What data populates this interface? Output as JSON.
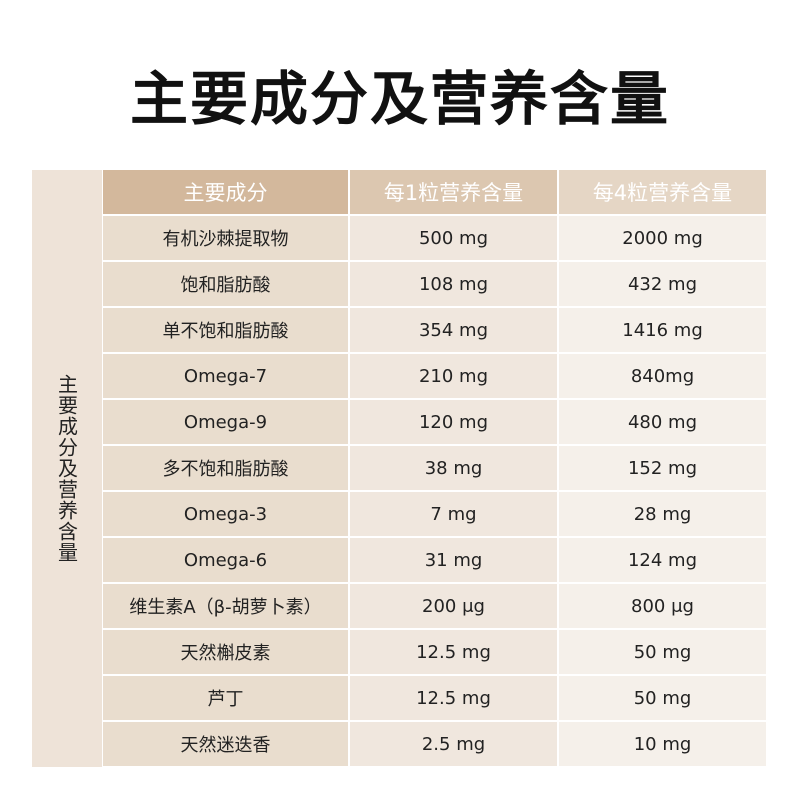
{
  "title": "主要成分及营养含量",
  "side_label": "主要成分及营养含量",
  "headers": [
    "主要成分",
    "每1粒营养含量",
    "每4粒营养含量"
  ],
  "rows": [
    [
      "有机沙棘提取物",
      "500 mg",
      "2000 mg"
    ],
    [
      "饱和脂肪酸",
      "108 mg",
      "432 mg"
    ],
    [
      "单不饱和脂肪酸",
      "354 mg",
      "1416 mg"
    ],
    [
      "Omega-7",
      "210 mg",
      "840mg"
    ],
    [
      "Omega-9",
      "120 mg",
      "480 mg"
    ],
    [
      "多不饱和脂肪酸",
      "38 mg",
      "152 mg"
    ],
    [
      "Omega-3",
      "7 mg",
      "28 mg"
    ],
    [
      "Omega-6",
      "31 mg",
      "124 mg"
    ],
    [
      "维生素A（β-胡萝卜素）",
      "200 μg",
      "800 μg"
    ],
    [
      "天然槲皮素",
      "12.5 mg",
      "50 mg"
    ],
    [
      "芦丁",
      "12.5 mg",
      "50 mg"
    ],
    [
      "天然迷迭香",
      "2.5 mg",
      "10 mg"
    ]
  ]
}
